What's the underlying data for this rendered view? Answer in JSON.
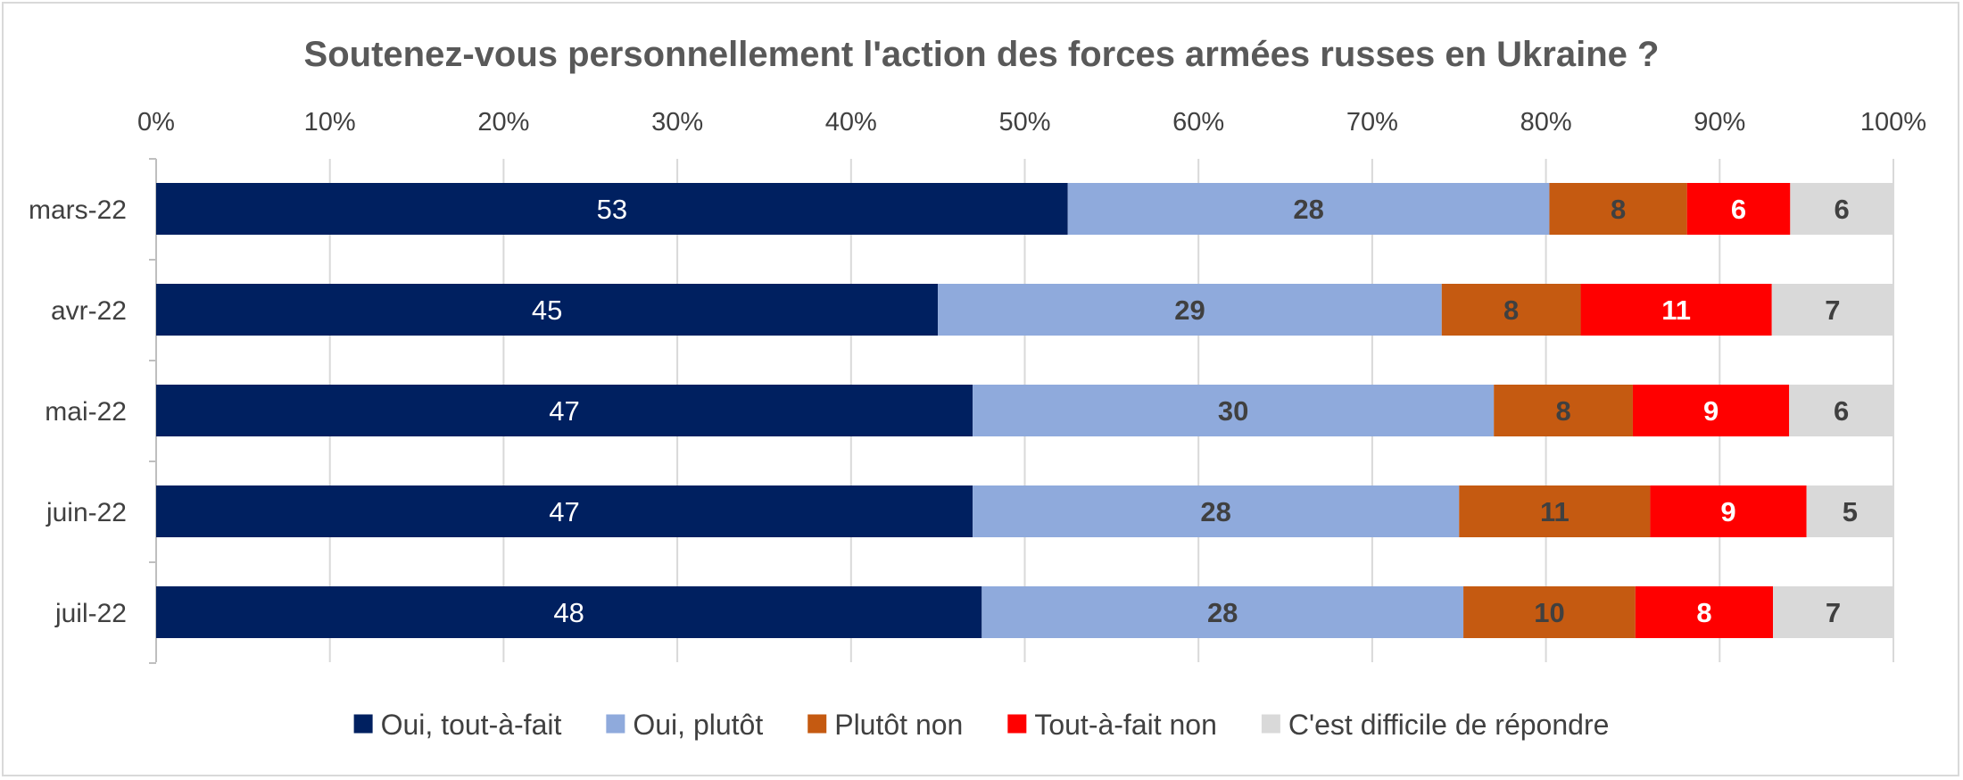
{
  "chart_data": {
    "type": "bar",
    "orientation": "horizontal",
    "stacked": "percent",
    "title": "Soutenez-vous personnellement l'action des forces armées russes en Ukraine ?",
    "categories": [
      "mars-22",
      "avr-22",
      "mai-22",
      "juin-22",
      "juil-22"
    ],
    "xlim": [
      0,
      100
    ],
    "x_ticks": [
      "0%",
      "10%",
      "20%",
      "30%",
      "40%",
      "50%",
      "60%",
      "70%",
      "80%",
      "90%",
      "100%"
    ],
    "grid": "vertical",
    "legend": "bottom",
    "series": [
      {
        "name": "Oui, tout-à-fait",
        "color": "#002060",
        "label_color": "#ffffff",
        "label_bold": false,
        "values": [
          53,
          45,
          47,
          47,
          48
        ]
      },
      {
        "name": "Oui, plutôt",
        "color": "#8faadc",
        "label_color": "#404040",
        "label_bold": true,
        "values": [
          28,
          29,
          30,
          28,
          28
        ]
      },
      {
        "name": "Plutôt non",
        "color": "#c55a11",
        "label_color": "#404040",
        "label_bold": true,
        "values": [
          8,
          8,
          8,
          11,
          10
        ]
      },
      {
        "name": "Tout-à-fait non",
        "color": "#ff0000",
        "label_color": "#ffffff",
        "label_bold": true,
        "values": [
          6,
          11,
          9,
          9,
          8
        ]
      },
      {
        "name": "C'est difficile de répondre",
        "color": "#d9d9d9",
        "label_color": "#404040",
        "label_bold": true,
        "values": [
          6,
          7,
          6,
          5,
          7
        ]
      }
    ]
  }
}
